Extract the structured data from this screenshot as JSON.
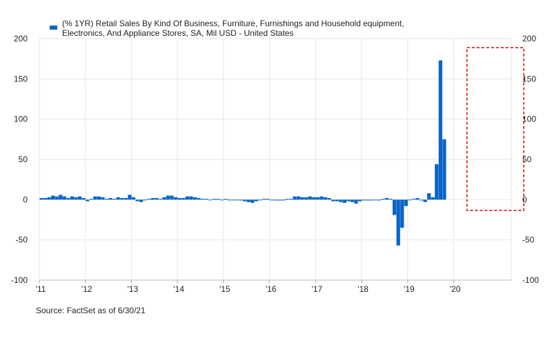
{
  "chart_data": {
    "type": "bar",
    "series": [
      {
        "name": "(% 1YR) Retail Sales By Kind Of Business, Furniture, Furnishings and Household equipment, Electronics, And Appliance Stores, SA, Mil USD - United States",
        "start": "2011-01",
        "values": [
          2,
          2,
          3,
          5,
          4,
          6,
          4,
          2,
          4,
          3,
          4,
          2,
          -2,
          1,
          4,
          4,
          3,
          1,
          2,
          1,
          3,
          2,
          2,
          6,
          3,
          -2,
          -3,
          0,
          1,
          2,
          2,
          1,
          3,
          5,
          5,
          3,
          2,
          2,
          4,
          4,
          3,
          2,
          1,
          1,
          0,
          1,
          1,
          0,
          1,
          0,
          0,
          0,
          -1,
          -2,
          -3,
          -4,
          -2,
          0,
          1,
          1,
          0,
          -1,
          -1,
          -1,
          1,
          1,
          4,
          4,
          3,
          3,
          4,
          3,
          3,
          4,
          3,
          2,
          -2,
          -2,
          -3,
          -4,
          -2,
          -3,
          -5,
          -2,
          -1,
          -1,
          -1,
          0,
          -1,
          1,
          2,
          1,
          -19,
          -57,
          -35,
          -8,
          0,
          1,
          2,
          -1,
          -3,
          8,
          3,
          44,
          173,
          75
        ]
      }
    ],
    "xlabels": [
      "'11",
      "'12",
      "'13",
      "'14",
      "'15",
      "'16",
      "'17",
      "'18",
      "'19",
      "'20"
    ],
    "ylim": [
      -100,
      200
    ],
    "yticks": [
      "200",
      "150",
      "100",
      "50",
      "0",
      "-50",
      "-100"
    ],
    "legend": "top-left",
    "grid": true,
    "bar_color": "#0a64c8",
    "highlight_color": "#cc0000",
    "highlight_range": [
      "2020-05",
      "2021-05"
    ],
    "source": "Source: FactSet as of 6/30/21"
  },
  "legend": {
    "line1": "(% 1YR) Retail Sales By Kind Of Business, Furniture, Furnishings and Household equipment,",
    "line2": "Electronics, And Appliance Stores, SA, Mil USD - United States"
  }
}
